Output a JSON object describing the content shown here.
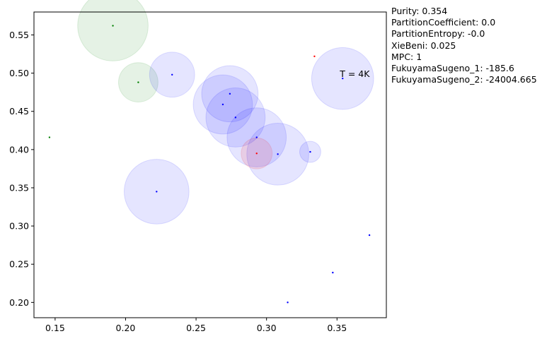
{
  "chart_data": {
    "type": "scatter",
    "title": "",
    "xlabel": "",
    "ylabel": "",
    "xlim": [
      0.135,
      0.385
    ],
    "ylim": [
      0.18,
      0.58
    ],
    "xticks": [
      "0.15",
      "0.20",
      "0.25",
      "0.30",
      "0.35"
    ],
    "xtick_values": [
      0.15,
      0.2,
      0.25,
      0.3,
      0.35
    ],
    "yticks": [
      "0.20",
      "0.25",
      "0.30",
      "0.35",
      "0.40",
      "0.45",
      "0.50",
      "0.55"
    ],
    "ytick_values": [
      0.2,
      0.25,
      0.3,
      0.35,
      0.4,
      0.45,
      0.5,
      0.55
    ],
    "grid": false,
    "colors": {
      "blue": "#0000ff",
      "green": "#008000",
      "red": "#ff0000"
    },
    "points": [
      {
        "x": 0.191,
        "y": 0.562,
        "color": "green",
        "r": 0.025
      },
      {
        "x": 0.209,
        "y": 0.488,
        "color": "green",
        "r": 0.014
      },
      {
        "x": 0.146,
        "y": 0.416,
        "color": "green",
        "r": 0.0
      },
      {
        "x": 0.233,
        "y": 0.498,
        "color": "blue",
        "r": 0.016
      },
      {
        "x": 0.274,
        "y": 0.473,
        "color": "blue",
        "r": 0.02
      },
      {
        "x": 0.269,
        "y": 0.459,
        "color": "blue",
        "r": 0.021
      },
      {
        "x": 0.278,
        "y": 0.442,
        "color": "blue",
        "r": 0.021
      },
      {
        "x": 0.293,
        "y": 0.416,
        "color": "blue",
        "r": 0.021
      },
      {
        "x": 0.308,
        "y": 0.394,
        "color": "blue",
        "r": 0.022
      },
      {
        "x": 0.293,
        "y": 0.395,
        "color": "red",
        "r": 0.011
      },
      {
        "x": 0.331,
        "y": 0.397,
        "color": "blue",
        "r": 0.0075
      },
      {
        "x": 0.354,
        "y": 0.493,
        "color": "blue",
        "r": 0.022
      },
      {
        "x": 0.334,
        "y": 0.522,
        "color": "red",
        "r": 0.0
      },
      {
        "x": 0.222,
        "y": 0.345,
        "color": "blue",
        "r": 0.023
      },
      {
        "x": 0.373,
        "y": 0.288,
        "color": "blue",
        "r": 0.0
      },
      {
        "x": 0.347,
        "y": 0.239,
        "color": "blue",
        "r": 0.0
      },
      {
        "x": 0.315,
        "y": 0.2,
        "color": "blue",
        "r": 0.0
      }
    ],
    "annotation": {
      "text": "T = 4K",
      "x": 0.352,
      "y": 0.495
    }
  },
  "metrics": [
    "Purity: 0.354",
    "PartitionCoefficient: 0.0",
    "PartitionEntropy: -0.0",
    "XieBeni: 0.025",
    "MPC: 1",
    "FukuyamaSugeno_1: -185.6",
    "FukuyamaSugeno_2: -24004.665"
  ]
}
